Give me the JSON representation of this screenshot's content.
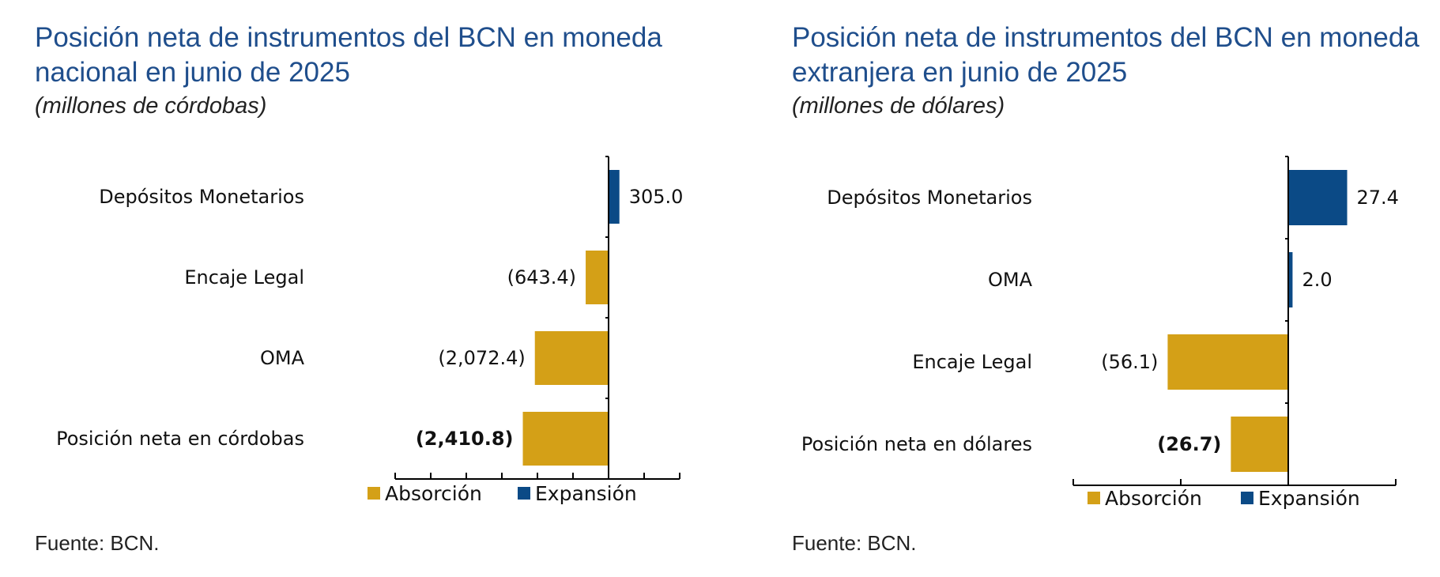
{
  "colors": {
    "absorption": "#d4a017",
    "expansion": "#0b4a86",
    "title": "#1f4e8c"
  },
  "chart_data": [
    {
      "type": "bar",
      "orientation": "horizontal",
      "title": "Posición neta de instrumentos del BCN en moneda nacional en junio de 2025",
      "subtitle": "(millones de córdobas)",
      "categories": [
        "Depósitos Monetarios",
        "Encaje Legal",
        "OMA",
        "Posición neta en córdobas"
      ],
      "values": [
        305.0,
        -643.4,
        -2072.4,
        -2410.8
      ],
      "value_labels": [
        "305.0",
        "(643.4)",
        "(2,072.4)",
        "(2,410.8)"
      ],
      "bold_labels": [
        false,
        false,
        false,
        true
      ],
      "series_type": [
        "Expansión",
        "Absorción",
        "Absorción",
        "Absorción"
      ],
      "xlim": [
        -6000,
        2000
      ],
      "x_tick_step": 1000,
      "legend": [
        "Absorción",
        "Expansión"
      ],
      "legend_position": "bottom",
      "source": "Fuente: BCN."
    },
    {
      "type": "bar",
      "orientation": "horizontal",
      "title": "Posición neta de instrumentos del BCN en moneda extranjera en junio de 2025",
      "subtitle": "(millones de dólares)",
      "categories": [
        "Depósitos Monetarios",
        "OMA",
        "Encaje Legal",
        "Posición neta en dólares"
      ],
      "values": [
        27.4,
        2.0,
        -56.1,
        -26.7
      ],
      "value_labels": [
        "27.4",
        "2.0",
        "(56.1)",
        "(26.7)"
      ],
      "bold_labels": [
        false,
        false,
        false,
        true
      ],
      "series_type": [
        "Expansión",
        "Expansión",
        "Absorción",
        "Absorción"
      ],
      "xlim": [
        -100,
        50
      ],
      "x_tick_step": 50,
      "legend": [
        "Absorción",
        "Expansión"
      ],
      "legend_position": "bottom",
      "source": "Fuente: BCN."
    }
  ]
}
